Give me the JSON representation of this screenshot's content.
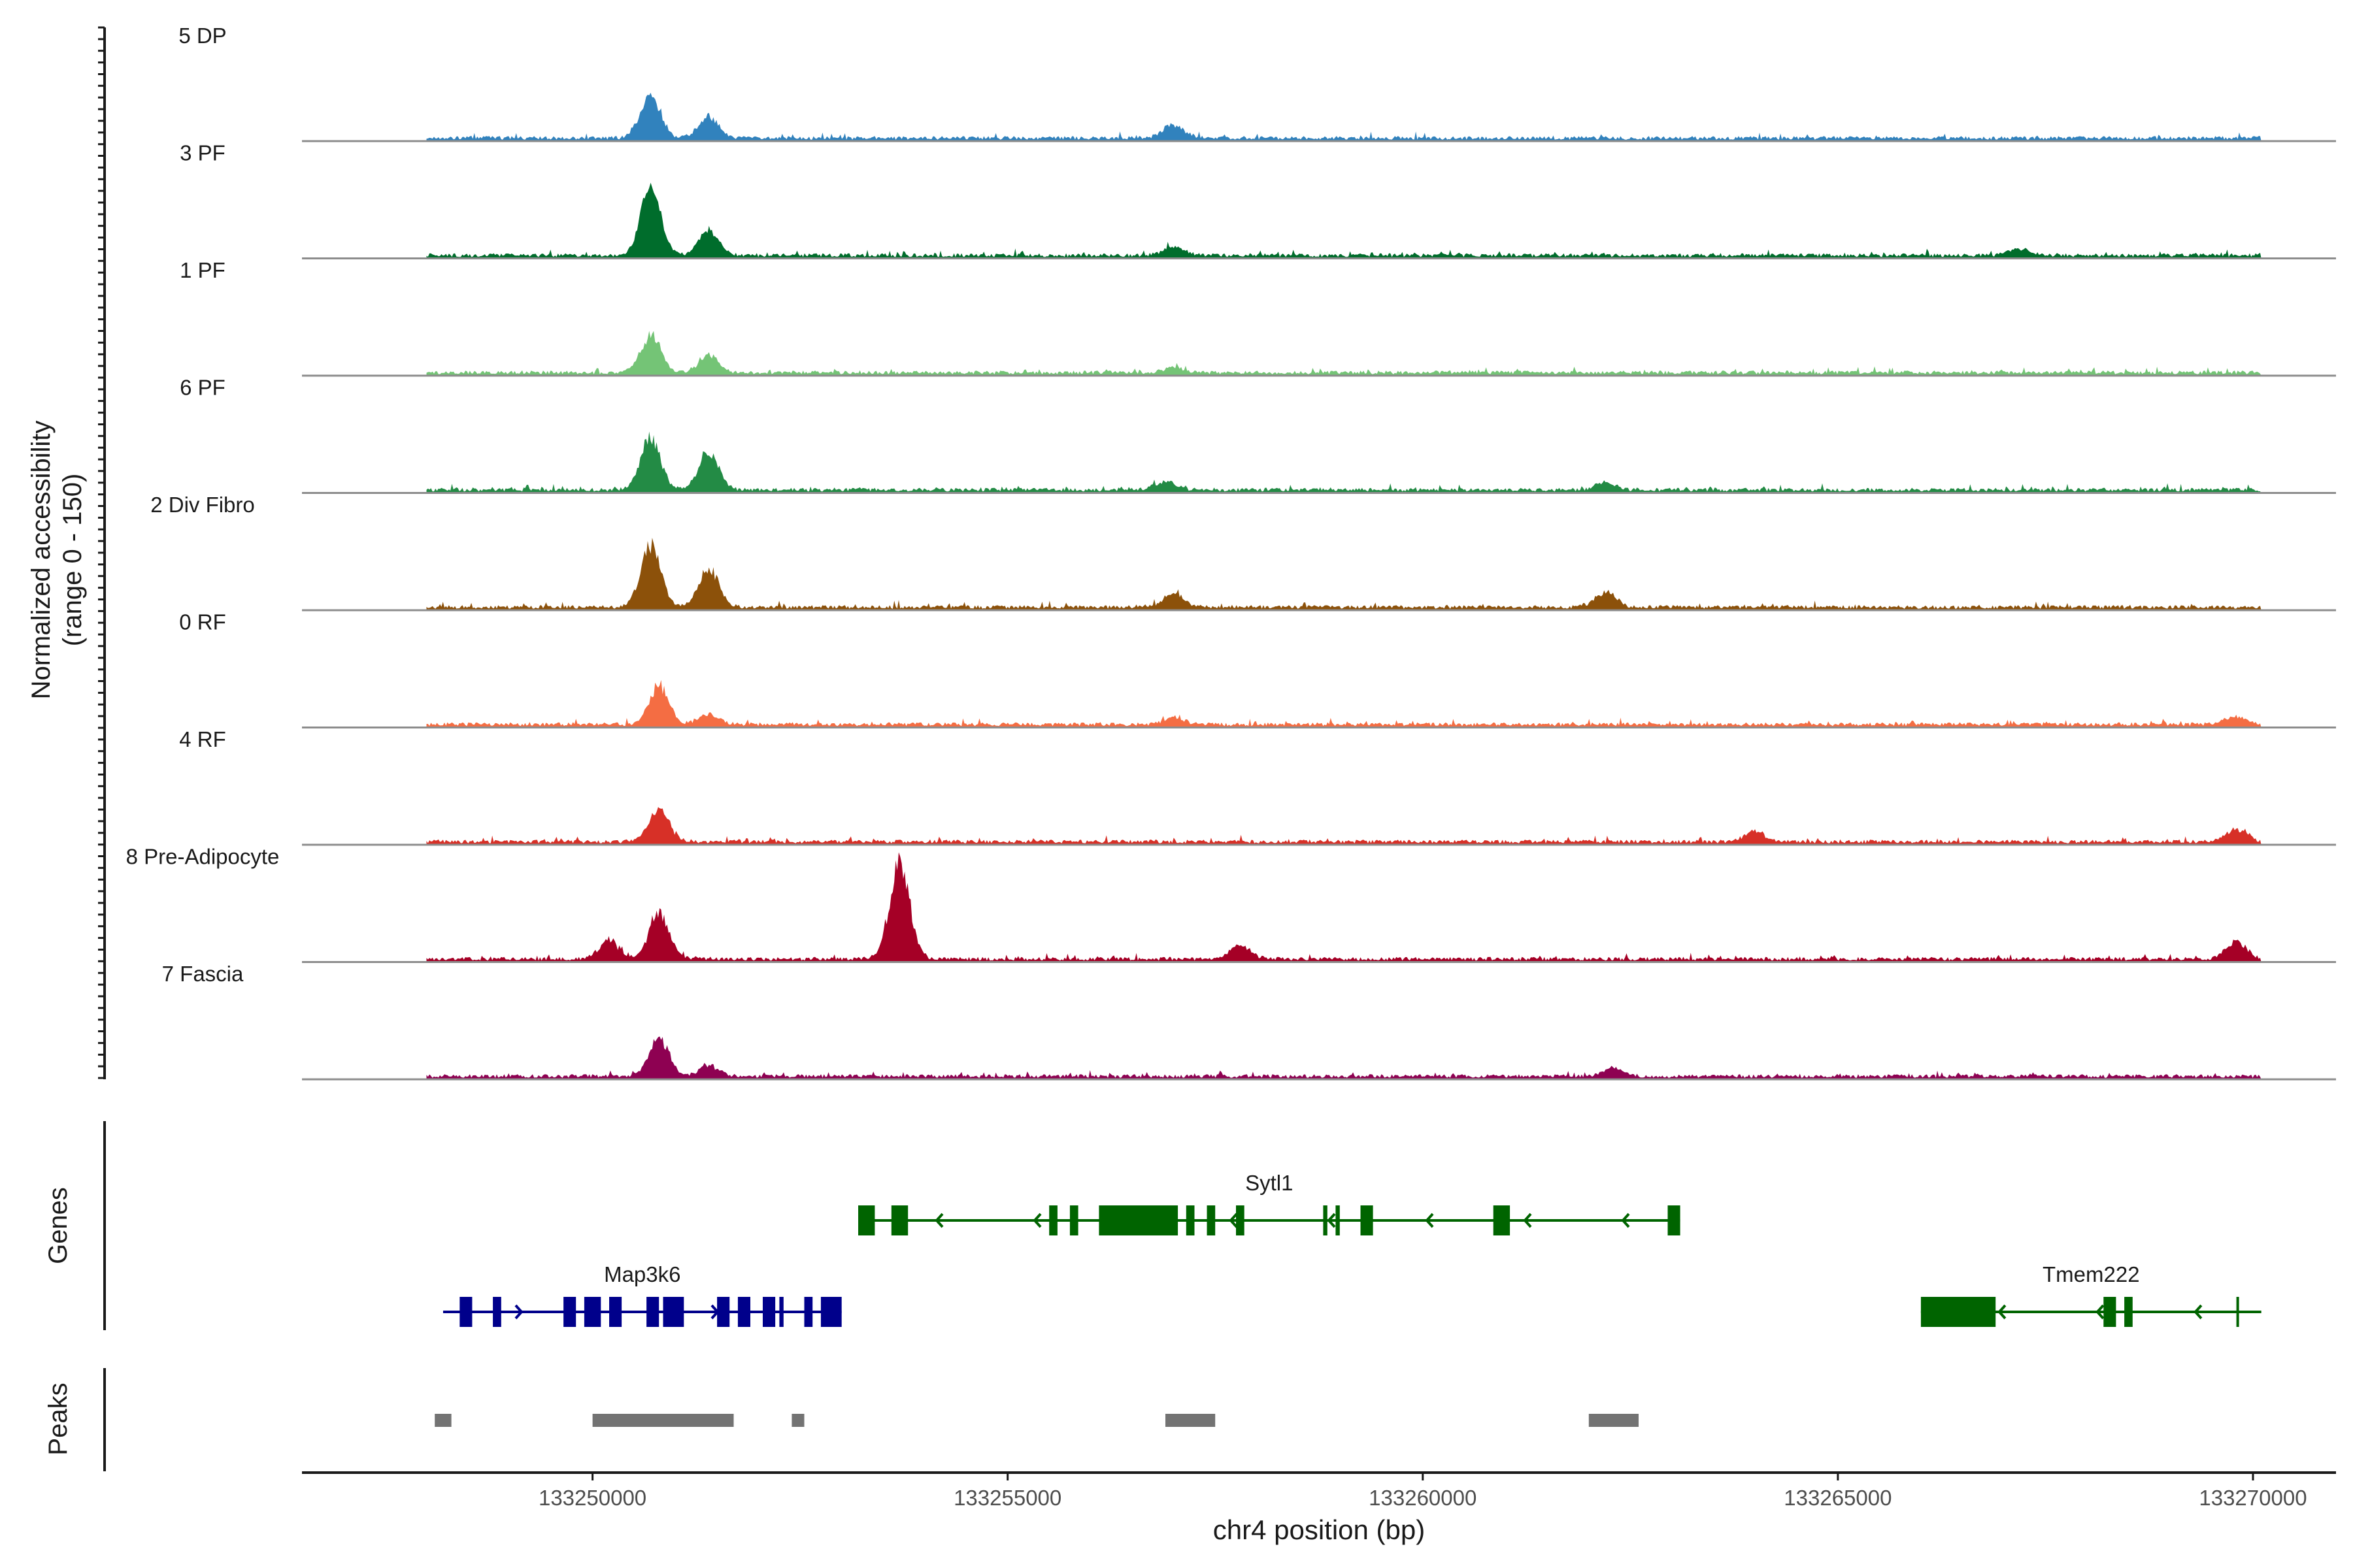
{
  "chart_data": {
    "type": "area",
    "y_axis_label": "Normalized accessibility",
    "y_axis_sublabel": "(range 0 - 150)",
    "y_range": [
      0,
      150
    ],
    "x_axis_label": "chr4 position (bp)",
    "x_range": [
      133246500,
      133271000
    ],
    "x_ticks": [
      {
        "value": 133250000,
        "label": "133250000"
      },
      {
        "value": 133255000,
        "label": "133255000"
      },
      {
        "value": 133260000,
        "label": "133260000"
      },
      {
        "value": 133265000,
        "label": "133265000"
      },
      {
        "value": 133270000,
        "label": "133270000"
      }
    ],
    "tracks": [
      {
        "name": "5 DP",
        "color": "#3182bd",
        "peaks": [
          [
            133250700,
            60
          ],
          [
            133251400,
            30
          ],
          [
            133257000,
            20
          ]
        ]
      },
      {
        "name": "3 PF",
        "color": "#006d2c",
        "peaks": [
          [
            133250700,
            95
          ],
          [
            133251400,
            35
          ],
          [
            133257000,
            12
          ],
          [
            133267200,
            10
          ]
        ]
      },
      {
        "name": "1 PF",
        "color": "#74c476",
        "peaks": [
          [
            133250700,
            55
          ],
          [
            133251400,
            25
          ],
          [
            133257000,
            8
          ]
        ]
      },
      {
        "name": "6 PF",
        "color": "#238b45",
        "peaks": [
          [
            133250700,
            75
          ],
          [
            133251400,
            55
          ],
          [
            133256900,
            12
          ],
          [
            133262200,
            10
          ]
        ]
      },
      {
        "name": "2 Div Fibro",
        "color": "#8c510a",
        "peaks": [
          [
            133250700,
            90
          ],
          [
            133251400,
            55
          ],
          [
            133257000,
            20
          ],
          [
            133262200,
            22
          ]
        ]
      },
      {
        "name": "0 RF",
        "color": "#f46d43",
        "peaks": [
          [
            133250800,
            55
          ],
          [
            133251400,
            15
          ],
          [
            133257000,
            10
          ],
          [
            133269800,
            12
          ]
        ]
      },
      {
        "name": "4 RF",
        "color": "#d73027",
        "peaks": [
          [
            133250800,
            45
          ],
          [
            133264000,
            15
          ],
          [
            133269800,
            18
          ]
        ]
      },
      {
        "name": "8 Pre-Adipocyte",
        "color": "#a50026",
        "peaks": [
          [
            133250800,
            65
          ],
          [
            133253700,
            140
          ],
          [
            133250200,
            25
          ],
          [
            133257800,
            20
          ],
          [
            133269800,
            25
          ]
        ]
      },
      {
        "name": "7 Fascia",
        "color": "#8e0152",
        "peaks": [
          [
            133250800,
            55
          ],
          [
            133251400,
            15
          ],
          [
            133262300,
            12
          ]
        ]
      }
    ],
    "genes_panel_label": "Genes",
    "genes": [
      {
        "name": "Sytl1",
        "color": "#006400",
        "strand": "-",
        "row": 1,
        "start": 133253200,
        "end": 133263100,
        "exons": [
          [
            133253200,
            133253400
          ],
          [
            133253600,
            133253800
          ],
          [
            133255500,
            133255600
          ],
          [
            133255750,
            133255850
          ],
          [
            133256100,
            133257050
          ],
          [
            133257150,
            133257250
          ],
          [
            133257400,
            133257500
          ],
          [
            133257750,
            133257850
          ],
          [
            133258800,
            133258850
          ],
          [
            133258950,
            133259000
          ],
          [
            133259250,
            133259400
          ],
          [
            133260850,
            133261050
          ],
          [
            133262950,
            133263100
          ]
        ]
      },
      {
        "name": "Map3k6",
        "color": "#00008b",
        "strand": "+",
        "row": 2,
        "start": 133248200,
        "end": 133253000,
        "exons": [
          [
            133248400,
            133248550
          ],
          [
            133248800,
            133248900
          ],
          [
            133249650,
            133249800
          ],
          [
            133249900,
            133250100
          ],
          [
            133250200,
            133250350
          ],
          [
            133250650,
            133250800
          ],
          [
            133250850,
            133251100
          ],
          [
            133251500,
            133251650
          ],
          [
            133251750,
            133251900
          ],
          [
            133252050,
            133252200
          ],
          [
            133252250,
            133252300
          ],
          [
            133252550,
            133252650
          ],
          [
            133252750,
            133253000
          ]
        ]
      },
      {
        "name": "Tmem222",
        "color": "#006400",
        "strand": "-",
        "row": 2,
        "start": 133266000,
        "end": 133270100,
        "exons": [
          [
            133266000,
            133266900
          ],
          [
            133268200,
            133268350
          ],
          [
            133268450,
            133268550
          ],
          [
            133269800,
            133269810
          ]
        ]
      }
    ],
    "peaks_panel_label": "Peaks",
    "peaks_color": "#737373",
    "peak_regions": [
      [
        133248100,
        133248300
      ],
      [
        133250000,
        133251700
      ],
      [
        133252400,
        133252550
      ],
      [
        133256900,
        133257500
      ],
      [
        133262000,
        133262600
      ]
    ]
  }
}
